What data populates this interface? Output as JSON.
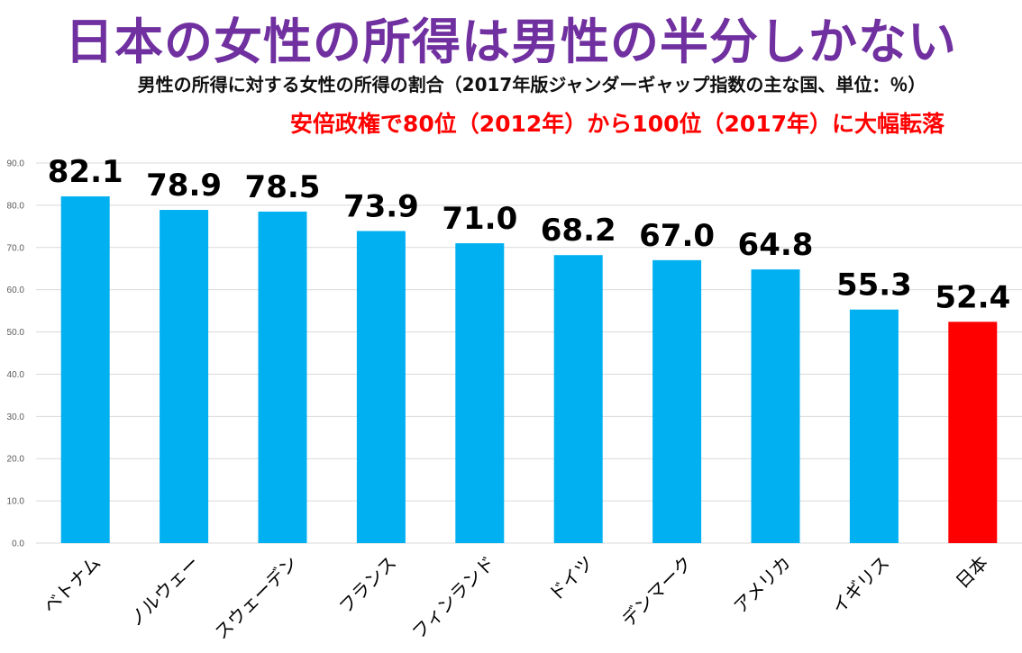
{
  "header": {
    "title": "日本の女性の所得は男性の半分しかない",
    "subtitle": "男性の所得に対する女性の所得の割合（2017年版ジャンダーギャップ指数の主な国、単位：％）",
    "headline": "安倍政権で80位（2012年）から100位（2017年）に大幅転落"
  },
  "colors": {
    "bar": "#00b0f0",
    "highlight": "#ff0000",
    "grid": "#d9d9d9",
    "title": "#7030a0"
  },
  "chart_data": {
    "type": "bar",
    "title": "日本の女性の所得は男性の半分しかない",
    "subtitle": "男性の所得に対する女性の所得の割合（2017年版ジャンダーギャップ指数の主な国、単位：％）",
    "xlabel": "",
    "ylabel": "",
    "ylim": [
      0,
      90
    ],
    "yticks": [
      "0.0",
      "10.0",
      "20.0",
      "30.0",
      "40.0",
      "50.0",
      "60.0",
      "70.0",
      "80.0",
      "90.0"
    ],
    "grid": true,
    "categories": [
      "ベトナム",
      "ノルウェー",
      "スウェーデン",
      "フランス",
      "フィンランド",
      "ドイツ",
      "デンマーク",
      "アメリカ",
      "イギリス",
      "日本"
    ],
    "values": [
      82.1,
      78.9,
      78.5,
      73.9,
      71.0,
      68.2,
      67.0,
      64.8,
      55.3,
      52.4
    ],
    "value_labels": [
      "82.1",
      "78.9",
      "78.5",
      "73.9",
      "71.0",
      "68.2",
      "67.0",
      "64.8",
      "55.3",
      "52.4"
    ],
    "highlight_category": "日本"
  }
}
